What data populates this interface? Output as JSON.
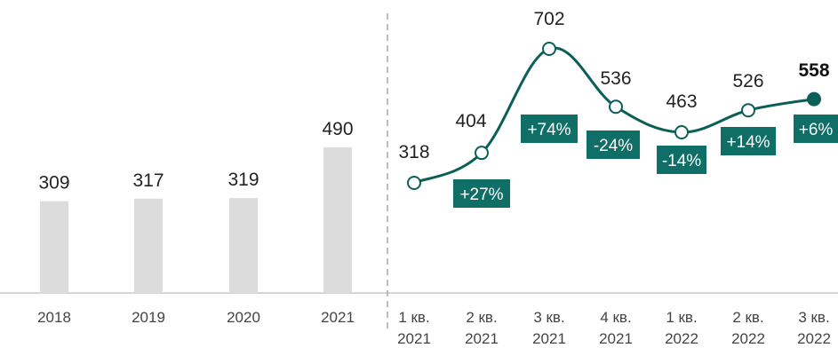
{
  "chart_data": [
    {
      "type": "bar",
      "categories": [
        "2018",
        "2019",
        "2020",
        "2021"
      ],
      "values": [
        309,
        317,
        319,
        490
      ],
      "ylim": [
        0,
        702
      ],
      "colors": {
        "bar": "#dcdcdc"
      }
    },
    {
      "type": "line",
      "categories": [
        [
          "1 кв.",
          "2021"
        ],
        [
          "2 кв.",
          "2021"
        ],
        [
          "3 кв.",
          "2021"
        ],
        [
          "4 кв.",
          "2021"
        ],
        [
          "1 кв.",
          "2022"
        ],
        [
          "2 кв.",
          "2022"
        ],
        [
          "3 кв.",
          "2022"
        ]
      ],
      "values": [
        318,
        404,
        702,
        536,
        463,
        526,
        558
      ],
      "value_labels": [
        "318",
        "404",
        "702",
        "536",
        "463",
        "526",
        "558"
      ],
      "change_labels": [
        "+27%",
        "+74%",
        "-24%",
        "-14%",
        "+14%",
        "+6%"
      ],
      "highlight_last": true,
      "colors": {
        "line": "#0b5f57",
        "badge": "#0f6e65",
        "marker_fill": "#ffffff"
      }
    }
  ]
}
